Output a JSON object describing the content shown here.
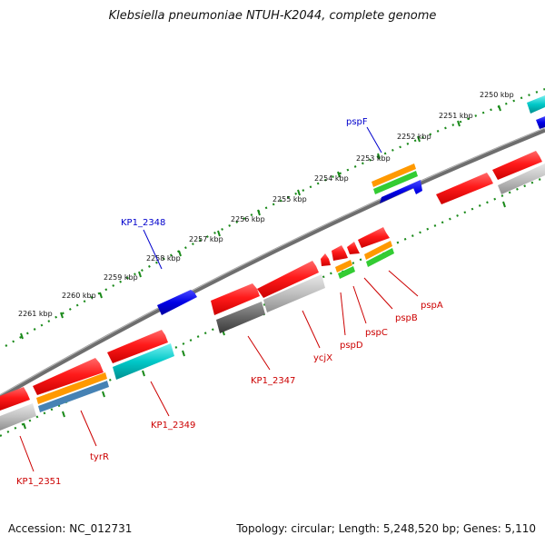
{
  "title": "Klebsiella pneumoniae NTUH-K2044, complete genome",
  "accession": "Accession: NC_012731",
  "topology": "Topology: circular; Length: 5,248,520 bp; Genes: 5,110",
  "ticks": [
    "2250 kbp",
    "2251 kbp",
    "2252 kbp",
    "2253 kbp",
    "2254 kbp",
    "2255 kbp",
    "2256 kbp",
    "2257 kbp",
    "2258 kbp",
    "2259 kbp",
    "2260 kbp",
    "2261 kbp"
  ],
  "gene_labels": {
    "pspF": "pspF",
    "kp1_2348": "KP1_2348",
    "kp1_2351": "KP1_2351",
    "tyrR": "tyrR",
    "kp1_2349": "KP1_2349",
    "kp1_2347": "KP1_2347",
    "ycjX": "ycjX",
    "pspD": "pspD",
    "pspC": "pspC",
    "pspB": "pspB",
    "pspA": "pspA"
  },
  "colors": {
    "gene_red": "#ff1a1a",
    "gene_blue": "#0000e6",
    "gene_cyan": "#00c8c8",
    "gene_orange": "#ff9900",
    "gene_green": "#33cc33",
    "gene_gray": "#c0c0c0",
    "gene_darkgray": "#666666",
    "gene_steel": "#4682b4",
    "backbone": "#777777",
    "tick_green": "#1a8a1a",
    "label_red": "#cc0000",
    "label_blue": "#0000cc"
  }
}
